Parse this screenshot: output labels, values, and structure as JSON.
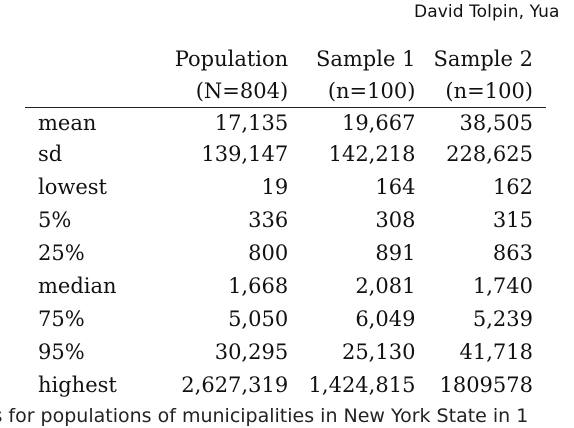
{
  "page": {
    "running_header": "David Tolpin, Yua",
    "caption": "cs for populations of municipalities in New York State in 1"
  },
  "table": {
    "headers": [
      {
        "name": "",
        "count": ""
      },
      {
        "name": "Population",
        "count": "(N=804)"
      },
      {
        "name": "Sample 1",
        "count": "(n=100)"
      },
      {
        "name": "Sample 2",
        "count": "(n=100)"
      }
    ],
    "rows": [
      {
        "label": "mean",
        "population": "17,135",
        "sample1": "19,667",
        "sample2": "38,505"
      },
      {
        "label": "sd",
        "population": "139,147",
        "sample1": "142,218",
        "sample2": "228,625"
      },
      {
        "label": "lowest",
        "population": "19",
        "sample1": "164",
        "sample2": "162"
      },
      {
        "label": "5%",
        "population": "336",
        "sample1": "308",
        "sample2": "315"
      },
      {
        "label": "25%",
        "population": "800",
        "sample1": "891",
        "sample2": "863"
      },
      {
        "label": "median",
        "population": "1,668",
        "sample1": "2,081",
        "sample2": "1,740"
      },
      {
        "label": "75%",
        "population": "5,050",
        "sample1": "6,049",
        "sample2": "5,239"
      },
      {
        "label": "95%",
        "population": "30,295",
        "sample1": "25,130",
        "sample2": "41,718"
      },
      {
        "label": "highest",
        "population": "2,627,319",
        "sample1": "1,424,815",
        "sample2": "1809578"
      }
    ]
  }
}
